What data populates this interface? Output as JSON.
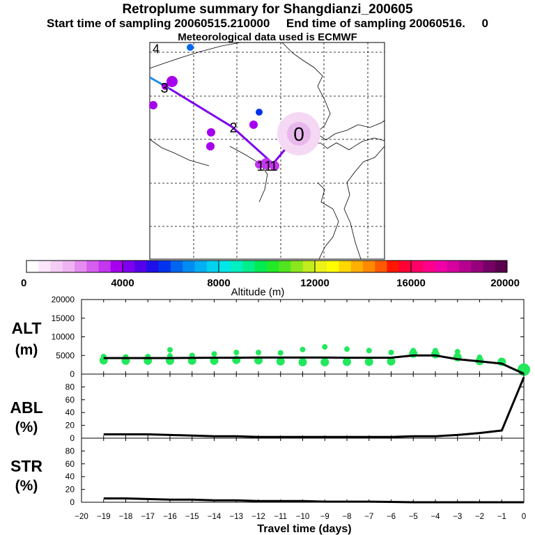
{
  "title": "Retroplume summary for Shangdianzi_200605",
  "subtitle": "Start time of sampling 20060515.210000     End time of sampling 20060516.     0",
  "met_line": "Meteorological data used is ECMWF",
  "colorbar": {
    "label": "Altitude (m)",
    "ticks": [
      "0",
      "4000",
      "8000",
      "12000",
      "16000",
      "20000"
    ],
    "range": [
      0,
      20000
    ],
    "colors": [
      "#ffffff",
      "#fbe6fb",
      "#f5ccf5",
      "#efb3f2",
      "#e58cf0",
      "#d75ff0",
      "#c436ef",
      "#a600ee",
      "#7e00ee",
      "#5400ea",
      "#1f10ea",
      "#0033ee",
      "#0066ef",
      "#008df3",
      "#00b0f2",
      "#00d2f0",
      "#00e7ea",
      "#00f0c0",
      "#00ee8c",
      "#00ea52",
      "#22e926",
      "#52e51f",
      "#8ce61e",
      "#c2ec1e",
      "#eaf21a",
      "#ffff00",
      "#ffd800",
      "#ffb000",
      "#ff8a00",
      "#ff5a00",
      "#ff1600",
      "#ff0036",
      "#ff0066",
      "#ff008c",
      "#f000a6",
      "#d600a0",
      "#b60090",
      "#98007c",
      "#760066",
      "#5a004e"
    ]
  },
  "map": {
    "markers": [
      {
        "label": "0",
        "alt": 500
      },
      {
        "label": "1",
        "alt": 2500
      },
      {
        "label": "1",
        "alt": 2500
      },
      {
        "label": "1",
        "alt": 2500
      },
      {
        "label": "2",
        "alt": 3500
      },
      {
        "label": "3",
        "alt": 3500
      },
      {
        "label": "4",
        "alt": 4500
      }
    ],
    "track_colors": [
      "#7d00ee",
      "#1f8ce6"
    ]
  },
  "chart_data": [
    {
      "type": "line",
      "title": "ALT (m)",
      "title_lines": [
        "ALT",
        "(m)"
      ],
      "xlabel": "Travel time (days)",
      "ylabel": "Altitude (m)",
      "x": [
        -19,
        -18,
        -17,
        -16,
        -15,
        -14,
        -13,
        -12,
        -11,
        -10,
        -9,
        -8,
        -7,
        -6,
        -5,
        -4,
        -3,
        -2,
        -1,
        0
      ],
      "values": [
        4300,
        4300,
        4300,
        4300,
        4350,
        4400,
        4400,
        4450,
        4450,
        4450,
        4450,
        4400,
        4400,
        4400,
        5000,
        5000,
        4000,
        3400,
        2800,
        100
      ],
      "ylim": [
        0,
        20000
      ],
      "yticks": [
        "0",
        "5000",
        "10000",
        "15000",
        "20000"
      ],
      "clusters": [
        {
          "x": -19,
          "alt": [
            3700,
            4700
          ]
        },
        {
          "x": -18,
          "alt": [
            3600,
            4600
          ]
        },
        {
          "x": -17,
          "alt": [
            3600,
            4700
          ]
        },
        {
          "x": -16,
          "alt": [
            3600,
            4900,
            6500
          ]
        },
        {
          "x": -15,
          "alt": [
            3600,
            5000
          ]
        },
        {
          "x": -14,
          "alt": [
            3600,
            5400
          ]
        },
        {
          "x": -13,
          "alt": [
            3800,
            5800
          ]
        },
        {
          "x": -12,
          "alt": [
            3700,
            5800
          ]
        },
        {
          "x": -11,
          "alt": [
            3400,
            5700
          ]
        },
        {
          "x": -10,
          "alt": [
            3200,
            6600
          ]
        },
        {
          "x": -9,
          "alt": [
            3200,
            7300
          ]
        },
        {
          "x": -8,
          "alt": [
            3300,
            6700
          ]
        },
        {
          "x": -7,
          "alt": [
            3300,
            6300
          ]
        },
        {
          "x": -6,
          "alt": [
            3400,
            5800
          ]
        },
        {
          "x": -5,
          "alt": [
            5500,
            6300
          ]
        },
        {
          "x": -4,
          "alt": [
            5300,
            6300
          ]
        },
        {
          "x": -3,
          "alt": [
            4500,
            6000
          ]
        },
        {
          "x": -2,
          "alt": [
            3500,
            4500
          ]
        },
        {
          "x": -1,
          "alt": [
            3300
          ]
        },
        {
          "x": 0,
          "alt": [
            1200
          ]
        }
      ]
    },
    {
      "type": "line",
      "title": "ABL (%)",
      "title_lines": [
        "ABL",
        "(%)"
      ],
      "x": [
        -19,
        -18,
        -17,
        -16,
        -15,
        -14,
        -13,
        -12,
        -11,
        -10,
        -9,
        -8,
        -7,
        -6,
        -5,
        -4,
        -3,
        -2,
        -1,
        0
      ],
      "values": [
        6,
        6,
        6,
        5,
        4,
        3,
        3,
        2,
        2,
        2,
        2,
        2,
        2,
        2,
        3,
        3,
        5,
        8,
        12,
        95
      ],
      "ylim": [
        0,
        100
      ],
      "yticks": [
        "0",
        "20",
        "40",
        "60",
        "80"
      ]
    },
    {
      "type": "line",
      "title": "STR (%)",
      "title_lines": [
        "STR",
        "(%)"
      ],
      "x": [
        -19,
        -18,
        -17,
        -16,
        -15,
        -14,
        -13,
        -12,
        -11,
        -10,
        -9,
        -8,
        -7,
        -6,
        -5,
        -4,
        -3,
        -2,
        -1,
        0
      ],
      "values": [
        6,
        6,
        5,
        4,
        4,
        3,
        3,
        2,
        2,
        2,
        1,
        1,
        1,
        0.5,
        0,
        0,
        0,
        0,
        0,
        0
      ],
      "ylim": [
        0,
        100
      ],
      "yticks": [
        "0",
        "20",
        "40",
        "60",
        "80"
      ]
    }
  ],
  "x_axis": {
    "label": "Travel time (days)",
    "xlim": [
      -20,
      0
    ],
    "ticks": [
      "−20",
      "−19",
      "−18",
      "−17",
      "−16",
      "−15",
      "−14",
      "−13",
      "−12",
      "−11",
      "−10",
      "−9",
      "−8",
      "−7",
      "−6",
      "−5",
      "−4",
      "−3",
      "−2",
      "−1",
      "0"
    ]
  }
}
